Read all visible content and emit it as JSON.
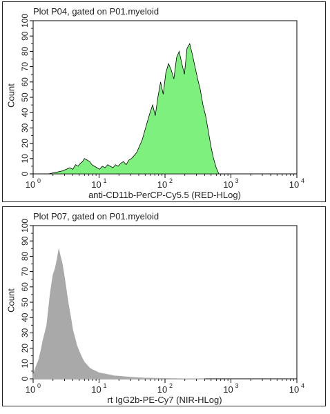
{
  "chart_data": [
    {
      "type": "area",
      "title": "Plot P04, gated on P01.myeloid",
      "xlabel": "anti-CD11b-PerCP-Cy5.5 (RED-HLog)",
      "ylabel": "Count",
      "xscale": "log",
      "xlim": [
        1,
        10000
      ],
      "ylim": [
        0,
        100
      ],
      "x_ticks": [
        "10",
        "10",
        "10",
        "10",
        "10"
      ],
      "x_tick_exponents": [
        "0",
        "1",
        "2",
        "3",
        "4"
      ],
      "y_ticks": [
        "0",
        "10",
        "20",
        "30",
        "40",
        "50",
        "60",
        "70",
        "80",
        "90",
        "100"
      ],
      "fill_color": "#7df07d",
      "stroke_color": "#000000",
      "grid": false,
      "x": [
        1.7,
        2.2,
        2.8,
        3.2,
        3.6,
        4.0,
        4.4,
        4.8,
        5.2,
        5.6,
        6.0,
        6.6,
        7.2,
        7.8,
        8.5,
        9.3,
        10.2,
        11.2,
        12.3,
        13.5,
        14.8,
        16.2,
        17.8,
        19.5,
        21.4,
        23.5,
        25.8,
        28.3,
        31.0,
        34.0,
        37.3,
        40.9,
        44.9,
        49.2,
        54.0,
        59.2,
        64.9,
        71.2,
        78.1,
        85.7,
        94.0,
        103,
        113,
        124,
        136,
        150,
        164,
        180,
        197,
        216,
        237,
        260,
        285,
        313,
        343,
        377,
        413,
        453,
        497,
        545,
        598,
        656
      ],
      "y": [
        0,
        1,
        2,
        3,
        4,
        3,
        6,
        5,
        7,
        8,
        10,
        9,
        8,
        6,
        5,
        4,
        3,
        5,
        4,
        6,
        5,
        4,
        6,
        5,
        7,
        8,
        6,
        9,
        10,
        12,
        14,
        18,
        22,
        28,
        34,
        40,
        45,
        38,
        50,
        60,
        52,
        66,
        72,
        68,
        62,
        76,
        80,
        72,
        65,
        82,
        85,
        78,
        70,
        62,
        55,
        45,
        38,
        28,
        18,
        10,
        4,
        0
      ]
    },
    {
      "type": "area",
      "title": "Plot P07, gated on P01.myeloid",
      "xlabel": "rt IgG2b-PE-Cy7 (NIR-HLog)",
      "ylabel": "Count",
      "xscale": "log",
      "xlim": [
        1,
        10000
      ],
      "ylim": [
        0,
        100
      ],
      "x_ticks": [
        "10",
        "10",
        "10",
        "10",
        "10"
      ],
      "x_tick_exponents": [
        "0",
        "1",
        "2",
        "3",
        "4"
      ],
      "y_ticks": [
        "0",
        "10",
        "20",
        "30",
        "40",
        "50",
        "60",
        "70",
        "80",
        "90",
        "100"
      ],
      "fill_color": "#a9a9a9",
      "grid": false,
      "x": [
        1.0,
        1.1,
        1.2,
        1.3,
        1.4,
        1.5,
        1.6,
        1.7,
        1.8,
        1.9,
        2.0,
        2.15,
        2.3,
        2.45,
        2.6,
        2.75,
        2.9,
        3.05,
        3.2,
        3.4,
        3.6,
        3.8,
        4.0,
        4.3,
        4.6,
        5.0,
        5.5,
        6.0,
        6.6,
        7.3,
        8.0,
        9.0,
        10.0,
        11.5,
        13.0,
        15.0,
        17.0,
        20.0,
        24.0,
        28.0,
        33.0,
        40.0,
        50.0,
        60.0,
        80.0,
        100.0,
        150.0,
        250.0,
        400.0
      ],
      "y": [
        3,
        8,
        12,
        18,
        25,
        30,
        35,
        45,
        55,
        62,
        68,
        72,
        78,
        85,
        80,
        76,
        70,
        64,
        58,
        50,
        44,
        38,
        32,
        27,
        22,
        18,
        14,
        11,
        9,
        7,
        6,
        5,
        4,
        3.5,
        3,
        2.5,
        2,
        1.8,
        1.5,
        1.2,
        1,
        0.8,
        0.6,
        0.5,
        0.4,
        0.3,
        0.2,
        0.1,
        0
      ]
    }
  ]
}
